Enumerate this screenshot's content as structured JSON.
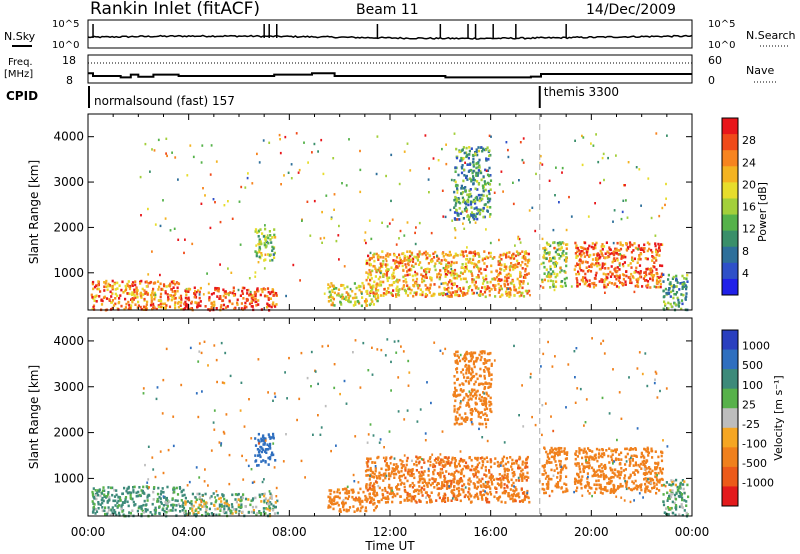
{
  "header": {
    "station": "Rankin Inlet (fitACF)",
    "beam": "Beam 11",
    "date": "14/Dec/2009"
  },
  "noise_panel": {
    "left_label": "N.Sky",
    "right_label": "N.Search",
    "left_ticks": [
      "10^5",
      "10^0"
    ],
    "right_ticks": [
      "10^5",
      "10^0"
    ]
  },
  "freq_panel": {
    "left_label_1": "Freq.",
    "left_label_2": "[MHz]",
    "right_label": "Nave",
    "left_ticks": [
      "18",
      "8"
    ],
    "right_ticks": [
      "60",
      "0"
    ],
    "freq_mhz": [
      {
        "t": 0.0,
        "v": 11.5
      },
      {
        "t": 0.2,
        "v": 10.5
      },
      {
        "t": 1.0,
        "v": 10.5
      },
      {
        "t": 1.3,
        "v": 10.0
      },
      {
        "t": 1.7,
        "v": 11.0
      },
      {
        "t": 2.0,
        "v": 10.2
      },
      {
        "t": 2.6,
        "v": 11.0
      },
      {
        "t": 3.6,
        "v": 10.5
      },
      {
        "t": 7.4,
        "v": 11.0
      },
      {
        "t": 8.9,
        "v": 11.5
      },
      {
        "t": 9.8,
        "v": 10.5
      },
      {
        "t": 14.2,
        "v": 10.0
      },
      {
        "t": 17.6,
        "v": 10.3
      },
      {
        "t": 18.0,
        "v": 11.2
      },
      {
        "t": 24.0,
        "v": 11.2
      }
    ]
  },
  "cpid": {
    "label": "CPID",
    "mode1": "normalsound (fast) 157",
    "mode2": "themis 3300",
    "switch_time_h": 17.95
  },
  "power_colorbar": {
    "title": "Power [dB]",
    "labels": [
      "28",
      "24",
      "20",
      "16",
      "12",
      "8",
      "4"
    ],
    "colors": [
      "#e8161b",
      "#f04a1a",
      "#f7841f",
      "#f4b321",
      "#e7dd2c",
      "#a3cf3a",
      "#55b24a",
      "#3a8f6a",
      "#2e6f9a",
      "#2f50c8",
      "#2020e8"
    ]
  },
  "velocity_colorbar": {
    "title": "Velocity [m s⁻¹]",
    "labels": [
      "1000",
      "500",
      "100",
      "25",
      "-25",
      "-100",
      "-500",
      "-1000"
    ],
    "colors": [
      "#2a3fbf",
      "#2f6fbf",
      "#3d8a7a",
      "#57b14a",
      "#bdbdbd",
      "#f5a623",
      "#f0801c",
      "#ec5a1a",
      "#e31a1c"
    ]
  },
  "chart_data": [
    {
      "type": "heatmap",
      "title": "Power",
      "ylabel": "Slant Range [km]",
      "xlabel": "Time UT",
      "xlim": [
        0,
        24
      ],
      "ylim": [
        180,
        4500
      ],
      "x_ticks": [
        "00:00",
        "04:00",
        "08:00",
        "12:00",
        "16:00",
        "20:00",
        "00:00"
      ],
      "y_ticks": [
        1000,
        2000,
        3000,
        4000
      ],
      "regions": [
        {
          "t0": 0.1,
          "t1": 3.8,
          "r0": 200,
          "r1": 850,
          "v": 24
        },
        {
          "t0": 3.8,
          "t1": 7.5,
          "r0": 200,
          "r1": 700,
          "v": 27
        },
        {
          "t0": 6.6,
          "t1": 7.4,
          "r0": 1300,
          "r1": 2000,
          "v": 14
        },
        {
          "t0": 9.5,
          "t1": 11.5,
          "r0": 300,
          "r1": 800,
          "v": 18
        },
        {
          "t0": 11.0,
          "t1": 17.5,
          "r0": 500,
          "r1": 1500,
          "v": 22
        },
        {
          "t0": 14.5,
          "t1": 16.0,
          "r0": 2200,
          "r1": 3800,
          "v": 10
        },
        {
          "t0": 18.0,
          "t1": 19.0,
          "r0": 700,
          "r1": 1700,
          "v": 16
        },
        {
          "t0": 19.3,
          "t1": 22.8,
          "r0": 700,
          "r1": 1700,
          "v": 26
        },
        {
          "t0": 22.8,
          "t1": 23.8,
          "r0": 200,
          "r1": 1000,
          "v": 10
        }
      ]
    },
    {
      "type": "heatmap",
      "title": "Velocity",
      "ylabel": "Slant Range [km]",
      "xlabel": "Time UT",
      "xlim": [
        0,
        24
      ],
      "ylim": [
        180,
        4500
      ],
      "x_ticks": [
        "00:00",
        "04:00",
        "08:00",
        "12:00",
        "16:00",
        "20:00",
        "00:00"
      ],
      "y_ticks": [
        1000,
        2000,
        3000,
        4000
      ],
      "regions": [
        {
          "t0": 0.1,
          "t1": 3.8,
          "r0": 200,
          "r1": 850,
          "v": 150
        },
        {
          "t0": 3.8,
          "t1": 7.5,
          "r0": 200,
          "r1": 700,
          "v": 60
        },
        {
          "t0": 6.6,
          "t1": 7.4,
          "r0": 1300,
          "r1": 2000,
          "v": 700
        },
        {
          "t0": 9.5,
          "t1": 11.5,
          "r0": 300,
          "r1": 800,
          "v": -300
        },
        {
          "t0": 11.0,
          "t1": 17.5,
          "r0": 500,
          "r1": 1500,
          "v": -400
        },
        {
          "t0": 14.5,
          "t1": 16.0,
          "r0": 2200,
          "r1": 3800,
          "v": -300
        },
        {
          "t0": 18.0,
          "t1": 19.0,
          "r0": 700,
          "r1": 1700,
          "v": -300
        },
        {
          "t0": 19.3,
          "t1": 22.8,
          "r0": 700,
          "r1": 1700,
          "v": -250
        },
        {
          "t0": 22.8,
          "t1": 23.8,
          "r0": 200,
          "r1": 1000,
          "v": 100
        }
      ]
    }
  ]
}
